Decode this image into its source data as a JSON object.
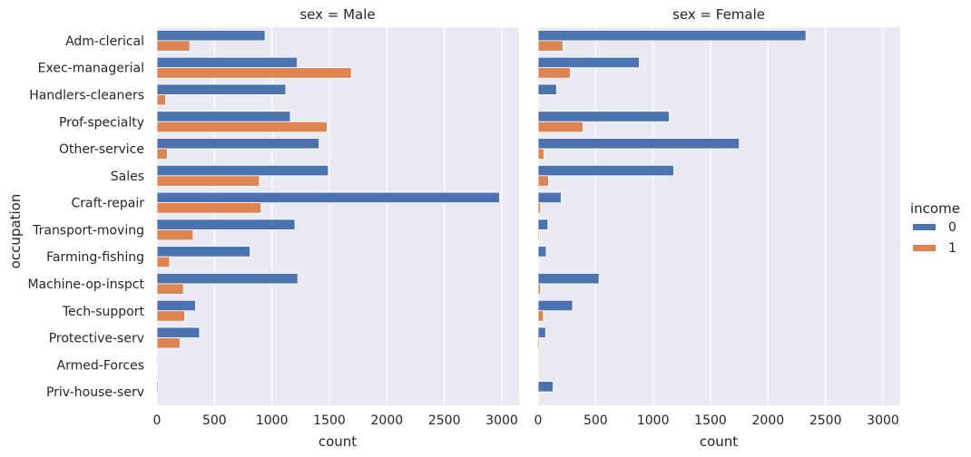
{
  "chart_data": {
    "type": "bar",
    "orientation": "horizontal",
    "ylabel": "occupation",
    "categories": [
      "Adm-clerical",
      "Exec-managerial",
      "Handlers-cleaners",
      "Prof-specialty",
      "Other-service",
      "Sales",
      "Craft-repair",
      "Transport-moving",
      "Farming-fishing",
      "Machine-op-inspct",
      "Tech-support",
      "Protective-serv",
      "Armed-Forces",
      "Priv-house-serv"
    ],
    "xlim": [
      0,
      3150
    ],
    "xticks": [
      0,
      500,
      1000,
      1500,
      2000,
      2500,
      3000
    ],
    "grid": true,
    "legend": {
      "title": "income",
      "position": "right",
      "entries": [
        {
          "label": "0",
          "color": "#4c72b0"
        },
        {
          "label": "1",
          "color": "#dd8452"
        }
      ]
    },
    "panels": [
      {
        "title": "sex =  Male",
        "xlabel": "count",
        "series": [
          {
            "name": "0",
            "color": "#4c72b0",
            "values": [
              940,
              1220,
              1120,
              1160,
              1410,
              1490,
              2980,
              1200,
              810,
              1225,
              335,
              370,
              8,
              10
            ]
          },
          {
            "name": "1",
            "color": "#dd8452",
            "values": [
              285,
              1690,
              75,
              1480,
              90,
              890,
              905,
              315,
              110,
              230,
              240,
              200,
              1,
              0
            ]
          }
        ]
      },
      {
        "title": "sex =  Female",
        "xlabel": "count",
        "series": [
          {
            "name": "0",
            "color": "#4c72b0",
            "values": [
              2330,
              880,
              160,
              1140,
              1750,
              1180,
              200,
              85,
              70,
              530,
              300,
              65,
              0,
              130
            ]
          },
          {
            "name": "1",
            "color": "#dd8452",
            "values": [
              215,
              280,
              5,
              390,
              50,
              90,
              20,
              10,
              5,
              20,
              45,
              12,
              0,
              2
            ]
          }
        ]
      }
    ]
  }
}
